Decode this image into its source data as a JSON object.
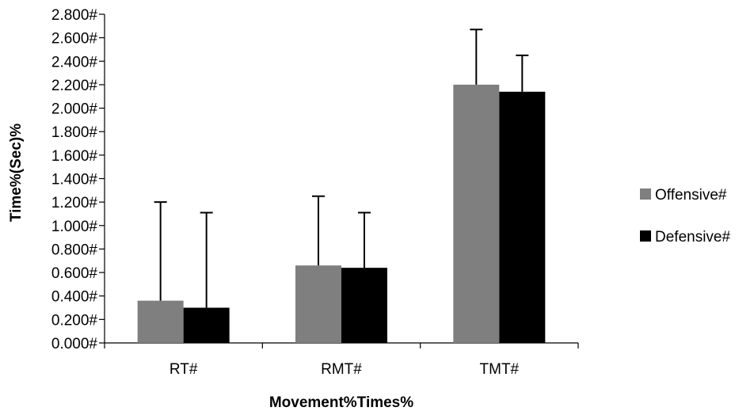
{
  "chart_data": {
    "type": "bar",
    "title": "",
    "xlabel": "Movement%Times%",
    "ylabel": "Time%(Sec)%",
    "categories": [
      "RT#",
      "RMT#",
      "TMT#"
    ],
    "ylim": [
      0,
      2.8
    ],
    "yticks": [
      "0.000#",
      "0.200#",
      "0.400#",
      "0.600#",
      "0.800#",
      "1.000#",
      "1.200#",
      "1.400#",
      "1.600#",
      "1.800#",
      "2.000#",
      "2.200#",
      "2.400#",
      "2.600#",
      "2.800#"
    ],
    "ytick_values": [
      0,
      0.2,
      0.4,
      0.6,
      0.8,
      1.0,
      1.2,
      1.4,
      1.6,
      1.8,
      2.0,
      2.2,
      2.4,
      2.6,
      2.8
    ],
    "series": [
      {
        "name": "Offensive#",
        "color": "#7f7f7f",
        "values": [
          0.36,
          0.66,
          2.2
        ],
        "error_upper": [
          0.84,
          0.59,
          0.47
        ]
      },
      {
        "name": "Defensive#",
        "color": "#000000",
        "values": [
          0.3,
          0.64,
          2.14
        ],
        "error_upper": [
          0.81,
          0.47,
          0.31
        ]
      }
    ],
    "error_bars": "upper-only",
    "grid": false,
    "legend_position": "right"
  }
}
